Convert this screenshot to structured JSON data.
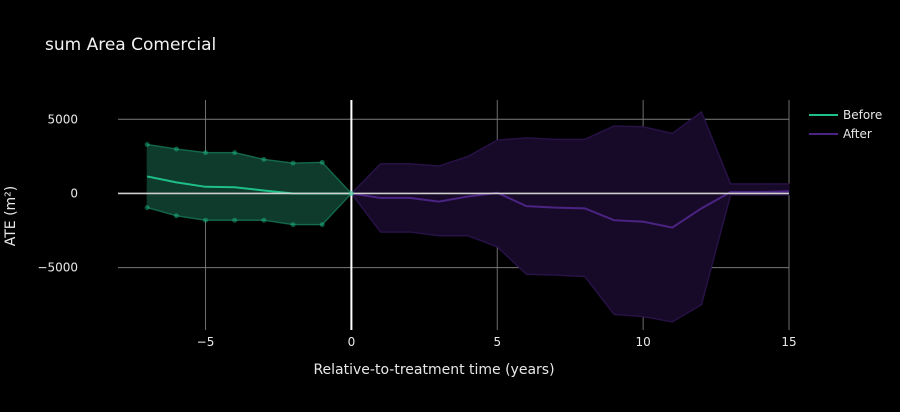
{
  "chart_data": {
    "type": "line",
    "title": "sum Area Comercial",
    "xlabel": "Relative-to-treatment time (years)",
    "ylabel": "ATE (m²)",
    "xlim": [
      -8,
      15
    ],
    "ylim": [
      -9200,
      6300
    ],
    "x_ticks": [
      -5,
      0,
      5,
      10,
      15
    ],
    "x_tick_labels": [
      "−5",
      "0",
      "5",
      "10",
      "15"
    ],
    "y_ticks": [
      -5000,
      0,
      5000
    ],
    "y_tick_labels": [
      "−5000",
      "0",
      "5000"
    ],
    "grid": true,
    "legend_position": "top-right",
    "treatment_line_x": 0,
    "series": [
      {
        "name": "Before",
        "color": "#1fbf8a",
        "band_color": "#0e3b2b",
        "x": [
          -7,
          -6,
          -5,
          -4,
          -3,
          -2,
          -1,
          0
        ],
        "values": [
          1150,
          750,
          450,
          420,
          200,
          0,
          0,
          0
        ],
        "upper": [
          3300,
          3000,
          2750,
          2750,
          2300,
          2050,
          2100,
          0
        ],
        "lower": [
          -950,
          -1500,
          -1800,
          -1800,
          -1800,
          -2100,
          -2100,
          0
        ]
      },
      {
        "name": "After",
        "color": "#4b2383",
        "band_color": "#170a28",
        "x": [
          0,
          1,
          2,
          3,
          4,
          5,
          6,
          7,
          8,
          9,
          10,
          11,
          12,
          13,
          14,
          15
        ],
        "values": [
          0,
          -300,
          -300,
          -550,
          -200,
          50,
          -850,
          -950,
          -1000,
          -1800,
          -1900,
          -2300,
          -1000,
          100,
          100,
          150
        ],
        "upper": [
          0,
          2000,
          2000,
          1850,
          2500,
          3600,
          3750,
          3650,
          3650,
          4550,
          4500,
          4050,
          5500,
          650,
          650,
          650
        ],
        "lower": [
          0,
          -2600,
          -2600,
          -2850,
          -2850,
          -3600,
          -5450,
          -5500,
          -5600,
          -8150,
          -8300,
          -8650,
          -7500,
          -100,
          -100,
          -100
        ]
      }
    ]
  }
}
